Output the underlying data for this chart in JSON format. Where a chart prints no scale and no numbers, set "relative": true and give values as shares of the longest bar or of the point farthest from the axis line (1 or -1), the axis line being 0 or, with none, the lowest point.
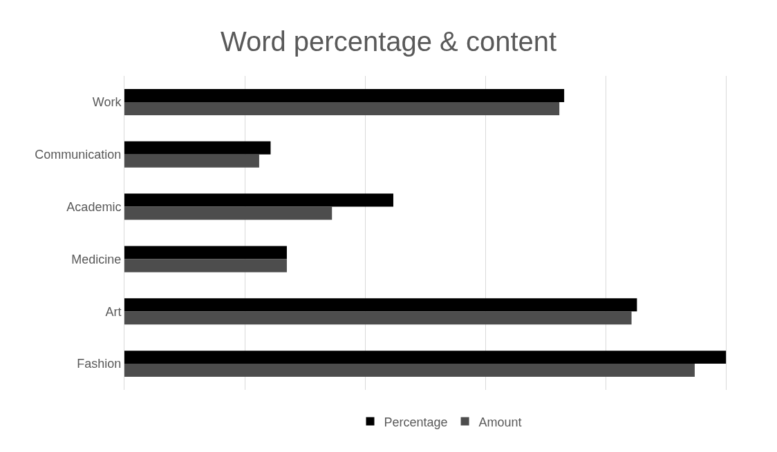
{
  "chart_data": {
    "type": "bar",
    "title": "Word percentage & content",
    "orientation": "horizontal",
    "relative": true,
    "categories": [
      "Work",
      "Communication",
      "Academic",
      "Medicine",
      "Art",
      "Fashion"
    ],
    "series": [
      {
        "name": "Percentage",
        "color": "#000000",
        "values": [
          0.731,
          0.243,
          0.447,
          0.27,
          0.852,
          1.0
        ]
      },
      {
        "name": "Amount",
        "color": "#4d4d4d",
        "values": [
          0.723,
          0.224,
          0.345,
          0.27,
          0.843,
          0.948
        ]
      }
    ],
    "grid": "x",
    "legend": "bottom"
  }
}
